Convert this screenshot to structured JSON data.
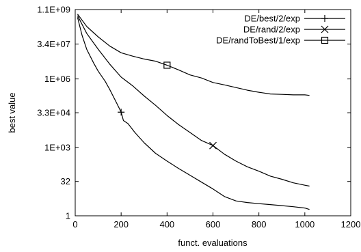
{
  "chart_data": {
    "type": "line",
    "title": "",
    "xlabel": "funct. evaluations",
    "ylabel": "best value",
    "xlim": [
      0,
      1200
    ],
    "ylim": [
      1,
      1100000000
    ],
    "y_scale": "log",
    "grid": false,
    "legend_position": "top-right",
    "x_ticks": [
      {
        "value": 0,
        "label": "0"
      },
      {
        "value": 200,
        "label": "200"
      },
      {
        "value": 400,
        "label": "400"
      },
      {
        "value": 600,
        "label": "600"
      },
      {
        "value": 800,
        "label": "800"
      },
      {
        "value": 1000,
        "label": "1000"
      },
      {
        "value": 1200,
        "label": "1200"
      }
    ],
    "y_ticks": [
      {
        "value": 1,
        "label": "1"
      },
      {
        "value": 32,
        "label": "32"
      },
      {
        "value": 1000,
        "label": "1E+03"
      },
      {
        "value": 33000,
        "label": "3.3E+04"
      },
      {
        "value": 1000000,
        "label": "1E+06"
      },
      {
        "value": 34000000,
        "label": "3.4E+07"
      },
      {
        "value": 1100000000,
        "label": "1.1E+09"
      }
    ],
    "series": [
      {
        "name": "DE/best/2/exp",
        "marker": "plus",
        "marker_at": [
          200,
          35000
        ],
        "x": [
          10,
          30,
          50,
          80,
          100,
          130,
          150,
          180,
          200,
          210,
          230,
          260,
          300,
          350,
          400,
          450,
          500,
          550,
          600,
          650,
          700,
          750,
          800,
          850,
          900,
          950,
          1000,
          1020
        ],
        "y": [
          500000000,
          80000000,
          20000000,
          5000000,
          2200000,
          800000,
          350000,
          90000,
          35000,
          15000,
          11000,
          4500,
          1600,
          550,
          250,
          120,
          60,
          30,
          15,
          7,
          4.5,
          3.8,
          3.4,
          3.1,
          2.8,
          2.5,
          2.2,
          1.9
        ]
      },
      {
        "name": "DE/rand/2/exp",
        "marker": "cross",
        "marker_at": [
          600,
          1200
        ],
        "x": [
          10,
          50,
          100,
          150,
          200,
          250,
          300,
          350,
          400,
          450,
          500,
          550,
          600,
          650,
          700,
          750,
          800,
          850,
          900,
          950,
          1000,
          1020
        ],
        "y": [
          600000000,
          100000000,
          20000000,
          4500000,
          1200000,
          500000,
          180000,
          70000,
          25000,
          10000,
          4500,
          2000,
          1200,
          500,
          250,
          140,
          90,
          55,
          40,
          28,
          22,
          20
        ]
      },
      {
        "name": "DE/randToBest/1/exp",
        "marker": "square",
        "marker_at": [
          400,
          4000000
        ],
        "x": [
          10,
          50,
          100,
          150,
          200,
          250,
          300,
          350,
          400,
          450,
          500,
          550,
          600,
          650,
          700,
          750,
          800,
          850,
          900,
          950,
          1000,
          1020
        ],
        "y": [
          700000000,
          200000000,
          70000000,
          28000000,
          14000000,
          10000000,
          7500000,
          6000000,
          4000000,
          2500000,
          1500000,
          1100000,
          700000,
          550000,
          420000,
          320000,
          260000,
          220000,
          210000,
          200000,
          200000,
          190000
        ]
      }
    ]
  }
}
